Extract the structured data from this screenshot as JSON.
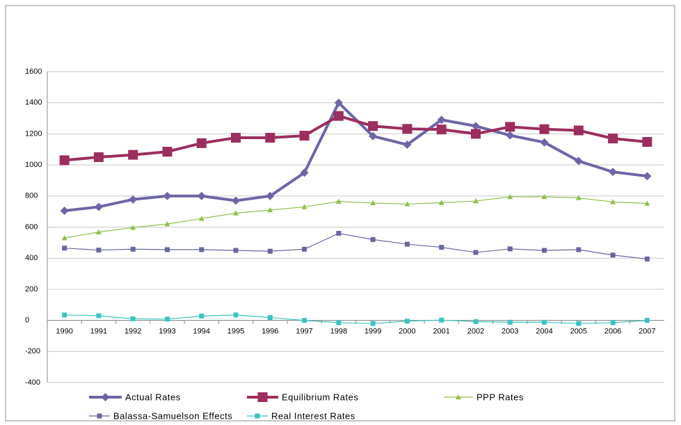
{
  "chart_data": {
    "type": "line",
    "categories": [
      "1990",
      "1991",
      "1992",
      "1993",
      "1994",
      "1995",
      "1996",
      "1997",
      "1998",
      "1999",
      "2000",
      "2001",
      "2002",
      "2003",
      "2004",
      "2005",
      "2006",
      "2007"
    ],
    "series": [
      {
        "name": "Actual Rates",
        "color": "#6b66a6",
        "marker": "diamond",
        "values": [
          705,
          730,
          778,
          800,
          800,
          770,
          800,
          950,
          1400,
          1185,
          1130,
          1290,
          1250,
          1190,
          1145,
          1025,
          955,
          928
        ]
      },
      {
        "name": "Equilibrium Rates",
        "color": "#9b2e5e",
        "marker": "square",
        "values": [
          1030,
          1050,
          1065,
          1085,
          1140,
          1175,
          1175,
          1188,
          1315,
          1250,
          1232,
          1228,
          1200,
          1245,
          1230,
          1222,
          1170,
          1148
        ]
      },
      {
        "name": "PPP Rates",
        "color": "#8dbf48",
        "marker": "triangle",
        "values": [
          530,
          568,
          597,
          620,
          655,
          690,
          710,
          730,
          765,
          755,
          748,
          757,
          768,
          795,
          795,
          788,
          762,
          752
        ]
      },
      {
        "name": "Balassa-Samuelson Effects",
        "color": "#6667a0",
        "marker": "square",
        "values": [
          465,
          452,
          458,
          455,
          455,
          450,
          445,
          458,
          560,
          520,
          490,
          470,
          437,
          460,
          450,
          455,
          420,
          395
        ]
      },
      {
        "name": "Real Interest Rates",
        "color": "#3cc3c0",
        "marker": "square",
        "values": [
          35,
          30,
          10,
          8,
          28,
          35,
          18,
          0,
          -15,
          -20,
          -5,
          2,
          -8,
          -12,
          -12,
          -20,
          -15,
          0
        ]
      }
    ],
    "ylim": [
      -400,
      1600
    ],
    "yticks": [
      -400,
      -200,
      0,
      200,
      400,
      600,
      800,
      1000,
      1200,
      1400,
      1600
    ],
    "grid": true,
    "legend": "bottom"
  }
}
